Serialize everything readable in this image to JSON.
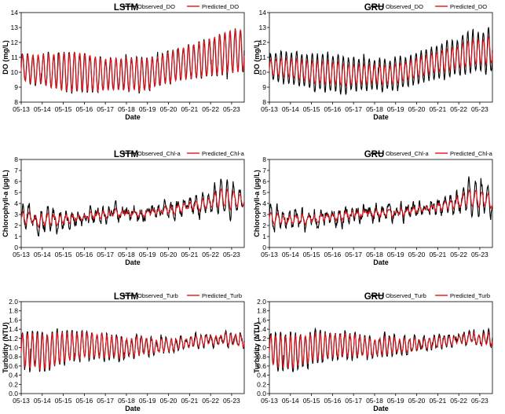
{
  "figure": {
    "background": "#ffffff"
  },
  "series_colors": {
    "observed": "#000000",
    "predicted": "#e8131b"
  },
  "chart_data": [
    {
      "id": "do-lstm",
      "type": "line",
      "title": "LSTM",
      "xlabel": "Date",
      "ylabel": "DO (mg/L)",
      "ylim": [
        8,
        14
      ],
      "yticks": [
        8,
        9,
        10,
        11,
        12,
        13,
        14
      ],
      "ytick_decimals": 0,
      "xticks": [
        "05-13",
        "05-14",
        "05-15",
        "05-16",
        "05-17",
        "05-18",
        "05-19",
        "05-20",
        "05-21",
        "05-22",
        "05-23"
      ],
      "xlim": [
        0,
        10.6
      ],
      "legend": [
        "Observed_DO",
        "Predicted_DO"
      ],
      "pattern": {
        "base": [
          10.3,
          10.2,
          10.0,
          10.1,
          9.8,
          9.9,
          9.8,
          10.2,
          10.6,
          10.9,
          11.3,
          11.5
        ],
        "amp": [
          0.9,
          1.0,
          1.3,
          1.3,
          1.1,
          1.1,
          1.1,
          1.0,
          1.1,
          1.2,
          1.4,
          1.5
        ],
        "cycles": 43,
        "noise": 0.12,
        "pred_amp": 0.98
      }
    },
    {
      "id": "do-gru",
      "type": "line",
      "title": "GRU",
      "xlabel": "Date",
      "ylabel": "DO (mg/L)",
      "ylim": [
        8,
        14
      ],
      "yticks": [
        8,
        9,
        10,
        11,
        12,
        13,
        14
      ],
      "ytick_decimals": 0,
      "xticks": [
        "05-13",
        "05-14",
        "05-15",
        "05-16",
        "05-17",
        "05-18",
        "05-19",
        "05-20",
        "05-21",
        "05-22",
        "05-23"
      ],
      "xlim": [
        0,
        10.6
      ],
      "legend": [
        "Observed_DO",
        "Predicted_DO"
      ],
      "pattern": {
        "base": [
          10.3,
          10.3,
          10.0,
          10.0,
          9.8,
          9.9,
          9.8,
          10.2,
          10.6,
          10.9,
          11.3,
          11.5
        ],
        "amp": [
          0.9,
          1.0,
          1.2,
          1.3,
          1.1,
          1.0,
          1.1,
          1.0,
          1.1,
          1.2,
          1.4,
          1.5
        ],
        "cycles": 43,
        "noise": 0.12,
        "pred_amp": 0.6
      }
    },
    {
      "id": "chl-lstm",
      "type": "line",
      "title": "LSTM",
      "xlabel": "Date",
      "ylabel": "Chlorophyll-a (μg/L)",
      "ylim": [
        0,
        8
      ],
      "yticks": [
        0,
        1,
        2,
        3,
        4,
        5,
        6,
        7,
        8
      ],
      "ytick_decimals": 0,
      "xticks": [
        "05-13",
        "05-14",
        "05-15",
        "05-16",
        "05-17",
        "05-18",
        "05-19",
        "05-20",
        "05-21",
        "05-22",
        "05-23"
      ],
      "xlim": [
        0,
        10.6
      ],
      "legend": [
        "Observed_Chl-a",
        "Predicted_Chl-a"
      ],
      "pattern": {
        "base": [
          2.6,
          2.5,
          2.6,
          2.8,
          3.0,
          3.1,
          3.1,
          3.3,
          3.6,
          3.9,
          4.5,
          4.2
        ],
        "amp": [
          0.9,
          0.8,
          0.6,
          0.5,
          0.4,
          0.4,
          0.4,
          0.5,
          0.6,
          0.7,
          1.4,
          1.0
        ],
        "cycles": 36,
        "noise": 0.45,
        "pred_amp": 0.55
      }
    },
    {
      "id": "chl-gru",
      "type": "line",
      "title": "GRU",
      "xlabel": "Date",
      "ylabel": "Chlorophyll-a (μg/L)",
      "ylim": [
        0,
        8
      ],
      "yticks": [
        0,
        1,
        2,
        3,
        4,
        5,
        6,
        7,
        8
      ],
      "ytick_decimals": 0,
      "xticks": [
        "05-13",
        "05-14",
        "05-15",
        "05-16",
        "05-17",
        "05-18",
        "05-19",
        "05-20",
        "05-21",
        "05-22",
        "05-23"
      ],
      "xlim": [
        0,
        10.6
      ],
      "legend": [
        "Observed_Chl-a",
        "Predicted_Chl-a"
      ],
      "pattern": {
        "base": [
          2.6,
          2.5,
          2.6,
          2.8,
          3.0,
          3.1,
          3.1,
          3.3,
          3.6,
          3.9,
          4.5,
          4.2
        ],
        "amp": [
          0.9,
          0.8,
          0.6,
          0.5,
          0.4,
          0.4,
          0.4,
          0.5,
          0.6,
          0.7,
          1.4,
          1.0
        ],
        "cycles": 36,
        "noise": 0.45,
        "pred_amp": 0.5
      }
    },
    {
      "id": "turb-lstm",
      "type": "line",
      "title": "LSTM",
      "xlabel": "Date",
      "ylabel": "Turbidity (NTU)",
      "ylim": [
        0,
        2
      ],
      "yticks": [
        0,
        0.2,
        0.4,
        0.6,
        0.8,
        1.0,
        1.2,
        1.4,
        1.6,
        1.8,
        2.0
      ],
      "ytick_decimals": 1,
      "xticks": [
        "05-13",
        "05-14",
        "05-15",
        "05-16",
        "05-17",
        "05-18",
        "05-19",
        "05-20",
        "05-21",
        "05-22",
        "05-23"
      ],
      "xlim": [
        0,
        10.6
      ],
      "legend": [
        "Observed_Turb",
        "Predicted_Turb"
      ],
      "pattern": {
        "base": [
          0.95,
          0.9,
          1.0,
          1.05,
          1.05,
          1.0,
          1.05,
          1.05,
          1.1,
          1.15,
          1.2,
          1.15
        ],
        "amp": [
          0.38,
          0.42,
          0.35,
          0.3,
          0.28,
          0.22,
          0.2,
          0.15,
          0.12,
          0.1,
          0.12,
          0.15
        ],
        "cycles": 45,
        "noise": 0.06,
        "pred_amp": 0.92
      }
    },
    {
      "id": "turb-gru",
      "type": "line",
      "title": "GRU",
      "xlabel": "Date",
      "ylabel": "Turbidity (NTU)",
      "ylim": [
        0,
        2
      ],
      "yticks": [
        0,
        0.2,
        0.4,
        0.6,
        0.8,
        1.0,
        1.2,
        1.4,
        1.6,
        1.8,
        2.0
      ],
      "ytick_decimals": 1,
      "xticks": [
        "05-13",
        "05-14",
        "05-15",
        "05-16",
        "05-17",
        "05-18",
        "05-19",
        "05-20",
        "05-21",
        "05-22",
        "05-23"
      ],
      "xlim": [
        0,
        10.6
      ],
      "legend": [
        "Observed_Turb",
        "Predicted_Turb"
      ],
      "pattern": {
        "base": [
          0.95,
          0.9,
          1.0,
          1.05,
          1.05,
          1.0,
          1.05,
          1.05,
          1.1,
          1.15,
          1.2,
          1.15
        ],
        "amp": [
          0.38,
          0.42,
          0.35,
          0.3,
          0.28,
          0.22,
          0.2,
          0.15,
          0.12,
          0.1,
          0.12,
          0.15
        ],
        "cycles": 45,
        "noise": 0.06,
        "pred_amp": 0.85
      }
    }
  ]
}
